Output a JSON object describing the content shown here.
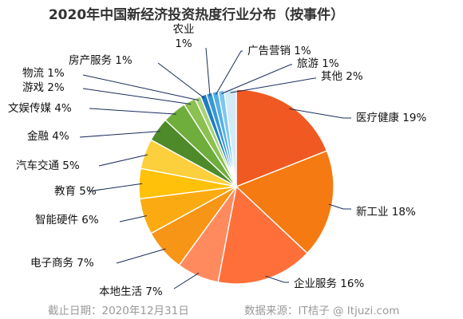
{
  "chart_data": {
    "type": "pie",
    "title": "2020年中国新经济投资热度行业分布（按事件）",
    "series": [
      {
        "label": "医疗健康 19%",
        "value": 19,
        "color": "#f05a22"
      },
      {
        "label": "新工业 18%",
        "value": 18,
        "color": "#f57a12"
      },
      {
        "label": "企业服务 16%",
        "value": 16,
        "color": "#ff6f3a"
      },
      {
        "label": "本地生活 7%",
        "value": 7,
        "color": "#ff8a5e"
      },
      {
        "label": "电子商务 7%",
        "value": 7,
        "color": "#f79516"
      },
      {
        "label": "智能硬件 6%",
        "value": 6,
        "color": "#fbab11"
      },
      {
        "label": "教育 5%",
        "value": 5,
        "color": "#ffc10a"
      },
      {
        "label": "汽车交通 5%",
        "value": 5,
        "color": "#fccf3c"
      },
      {
        "label": "金融 4%",
        "value": 4,
        "color": "#4e8a2a"
      },
      {
        "label": "文娱传媒 4%",
        "value": 4,
        "color": "#6fad3c"
      },
      {
        "label": "游戏 2%",
        "value": 2,
        "color": "#8cc151"
      },
      {
        "label": "物流 1%",
        "value": 1,
        "color": "#a8d277"
      },
      {
        "label": "房产服务 1%",
        "value": 1,
        "color": "#1f7ec3"
      },
      {
        "label": "农业\n1%",
        "value": 1,
        "color": "#3898d6"
      },
      {
        "label": "广告营销 1%",
        "value": 1,
        "color": "#55b0e4"
      },
      {
        "label": "旅游 1%",
        "value": 1,
        "color": "#7cc7ee"
      },
      {
        "label": "其他 2%",
        "value": 2,
        "color": "#d2ebf7"
      }
    ]
  },
  "footer": {
    "date": "截止日期：2020年12月31日",
    "source": "数据来源：IT桔子 @ Itjuzi.com"
  }
}
